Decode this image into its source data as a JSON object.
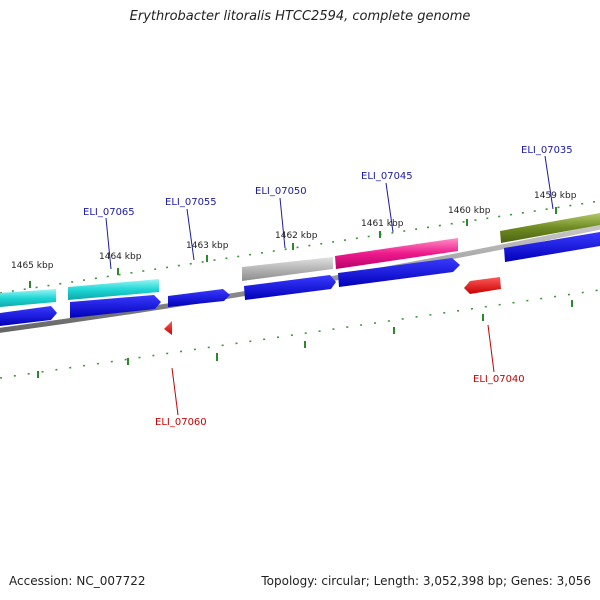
{
  "title": "Erythrobacter litoralis HTCC2594, complete genome",
  "footer": {
    "accession_label": "Accession:",
    "accession": "NC_007722",
    "summary": "Topology: circular; Length: 3,052,398 bp; Genes: 3,056"
  },
  "colors": {
    "forward_label": "#1a1aa8",
    "reverse_label": "#cc0000",
    "cds": "#0000ee",
    "reverse_gene": "#ee0000",
    "backbone": "#888888",
    "tick": "#2a8a2a"
  },
  "ticks": [
    "1465 kbp",
    "1464 kbp",
    "1463 kbp",
    "1462 kbp",
    "1461 kbp",
    "1460 kbp",
    "1459 kbp"
  ],
  "gene_labels": {
    "forward": [
      "ELI_07065",
      "ELI_07055",
      "ELI_07050",
      "ELI_07045",
      "ELI_07035"
    ],
    "reverse": [
      "ELI_07060",
      "ELI_07040"
    ]
  },
  "feature_colors": {
    "cyan": "#1fd6d6",
    "gray": "#b0b0b0",
    "magenta": "#ee1a8c",
    "olive": "#6f8a22"
  }
}
